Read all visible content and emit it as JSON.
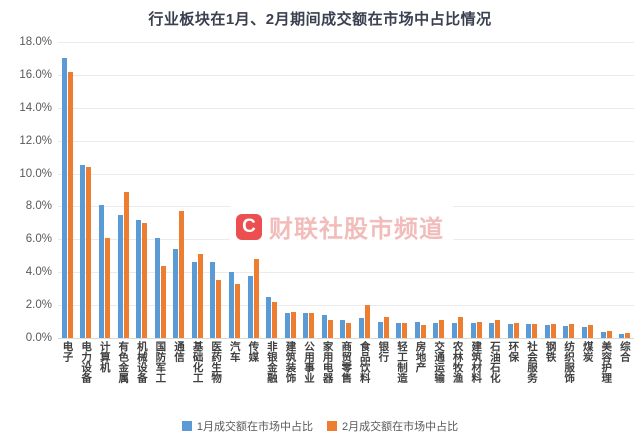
{
  "title": "行业板块在1月、2月期间成交额在市场中占比情况",
  "watermark": {
    "logo_letter": "C",
    "text": "财联社股市频道",
    "color": "#E61E1E"
  },
  "colors": {
    "jan": "#5B9BD5",
    "feb": "#ED7D31",
    "grid": "#EBEBEB",
    "axis": "#D9D9D9"
  },
  "chart_data": {
    "type": "bar",
    "title": "行业板块在1月、2月期间成交额在市场中占比情况",
    "xlabel": "",
    "ylabel": "",
    "ylim": [
      0,
      18
    ],
    "ytick_step": 2,
    "ytick_suffix": ".0%",
    "grid": true,
    "legend_position": "bottom",
    "categories": [
      "电子",
      "电力设备",
      "计算机",
      "有色金属",
      "机械设备",
      "国防军工",
      "通信",
      "基础化工",
      "医药生物",
      "汽车",
      "传媒",
      "非银金融",
      "建筑装饰",
      "公用事业",
      "家用电器",
      "商贸零售",
      "食品饮料",
      "银行",
      "轻工制造",
      "房地产",
      "交通运输",
      "农林牧渔",
      "建筑材料",
      "石油石化",
      "环保",
      "社会服务",
      "钢铁",
      "纺织服饰",
      "煤炭",
      "美容护理",
      "综合"
    ],
    "series": [
      {
        "name": "1月成交额在市场中占比",
        "color": "#5B9BD5",
        "values": [
          17.0,
          10.5,
          8.1,
          7.5,
          7.2,
          6.1,
          5.4,
          4.6,
          4.6,
          4.0,
          3.8,
          2.5,
          1.5,
          1.5,
          1.4,
          1.1,
          1.2,
          1.0,
          0.9,
          1.0,
          0.9,
          0.9,
          0.9,
          0.9,
          0.85,
          0.85,
          0.8,
          0.75,
          0.7,
          0.35,
          0.25
        ]
      },
      {
        "name": "2月成交额在市场中占比",
        "color": "#ED7D31",
        "values": [
          16.2,
          10.4,
          6.1,
          8.9,
          7.0,
          4.4,
          7.7,
          5.1,
          3.5,
          3.3,
          4.8,
          2.2,
          1.6,
          1.5,
          1.1,
          0.9,
          2.0,
          1.3,
          0.9,
          0.8,
          1.1,
          1.3,
          1.0,
          1.1,
          0.9,
          0.85,
          0.85,
          0.85,
          0.8,
          0.4,
          0.3
        ]
      }
    ]
  }
}
